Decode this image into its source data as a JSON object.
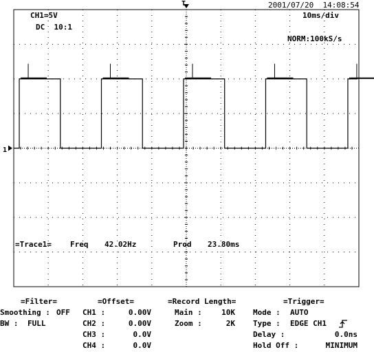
{
  "header": {
    "datetime": "2001/07/20  14:08:54",
    "channel_scale": "CH1=5V",
    "coupling": "DC  10:1",
    "timebase": "10ms/div",
    "sampling": "NORM:100kS/s",
    "trigger_marker": "T",
    "ground_marker": "1"
  },
  "measurement": {
    "trace_label": "=Trace1=",
    "freq_label": "Freq",
    "freq_value": "42.02Hz",
    "prod_label": "Prod",
    "prod_value": "23.80ms"
  },
  "filter": {
    "title": "=Filter=",
    "smoothing_label": "Smoothing :",
    "smoothing_value": "OFF",
    "bw_label": "BW :",
    "bw_value": "FULL"
  },
  "offset": {
    "title": "=Offset=",
    "rows": [
      {
        "label": "CH1 :",
        "value": "0.00V"
      },
      {
        "label": "CH2 :",
        "value": "0.00V"
      },
      {
        "label": "CH3 :",
        "value": "0.0V"
      },
      {
        "label": "CH4 :",
        "value": "0.0V"
      }
    ]
  },
  "record": {
    "title": "=Record Length=",
    "main_label": "Main :",
    "main_value": "10K",
    "zoom_label": "Zoom :",
    "zoom_value": "2K"
  },
  "trigger": {
    "title": "=Trigger=",
    "mode_label": "Mode :",
    "mode_value": "AUTO",
    "type_label": "Type :",
    "type_value": "EDGE CH1",
    "delay_label": "Delay :",
    "delay_value": "0.0ns",
    "holdoff_label": "Hold Off :",
    "holdoff_value": "MINIMUM",
    "slope_icon": "rising-edge-icon"
  },
  "waveform": {
    "type": "square",
    "frequency_hz": 42.02,
    "period_ms": 23.8,
    "duty_cycle": 0.5,
    "high_level_v": 10.0,
    "low_level_v": 0.0,
    "colors": {
      "trace": "#000000",
      "grid": "#000000",
      "background": "#ffffff"
    }
  }
}
